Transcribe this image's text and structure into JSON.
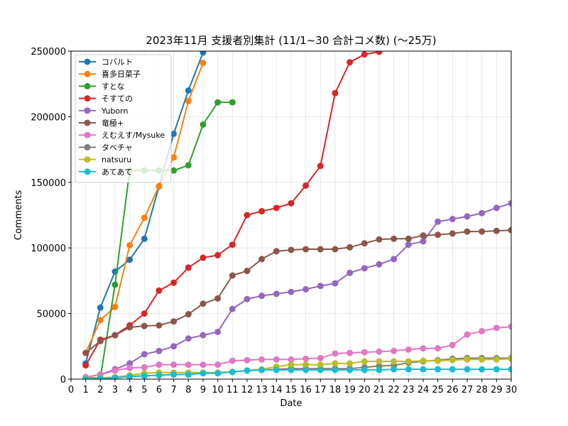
{
  "chart_data": {
    "type": "line",
    "title": "2023年11月 支援者別集計 (11/1~30 合計コメ数) (〜25万)",
    "xlabel": "Date",
    "ylabel": "Comments",
    "xlim": [
      0,
      30
    ],
    "ylim": [
      0,
      250000
    ],
    "x_ticks": [
      "0",
      "1",
      "2",
      "3",
      "4",
      "5",
      "6",
      "7",
      "8",
      "9",
      "10",
      "11",
      "12",
      "13",
      "14",
      "15",
      "16",
      "17",
      "18",
      "19",
      "20",
      "21",
      "22",
      "23",
      "24",
      "25",
      "26",
      "27",
      "28",
      "29",
      "30"
    ],
    "y_ticks": [
      "0",
      "50000",
      "100000",
      "150000",
      "200000",
      "250000"
    ],
    "grid": true,
    "legend_position": "top-left",
    "x": [
      1,
      2,
      3,
      4,
      5,
      6,
      7,
      8,
      9,
      10,
      11,
      12,
      13,
      14,
      15,
      16,
      17,
      18,
      19,
      20,
      21,
      22,
      23,
      24,
      25,
      26,
      27,
      28,
      29,
      30
    ],
    "series": [
      {
        "name": "コバルト",
        "color": "#1f77b4",
        "values": [
          12000,
          54500,
          82000,
          91000,
          107000,
          147000,
          187000,
          220000,
          249000,
          null,
          null,
          null,
          null,
          null,
          null,
          null,
          null,
          null,
          null,
          null,
          null,
          null,
          null,
          null,
          null,
          null,
          null,
          null,
          null,
          null
        ]
      },
      {
        "name": "喜多日菜子",
        "color": "#ff7f0e",
        "values": [
          20000,
          45000,
          55000,
          102000,
          123000,
          147000,
          169000,
          212000,
          241000,
          null,
          null,
          null,
          null,
          null,
          null,
          null,
          null,
          null,
          null,
          null,
          null,
          null,
          null,
          null,
          null,
          null,
          null,
          null,
          null,
          null
        ]
      },
      {
        "name": "すとな",
        "color": "#2ca02c",
        "values": [
          1000,
          1000,
          72000,
          159000,
          159000,
          159000,
          159000,
          163000,
          194000,
          211000,
          211000,
          null,
          null,
          null,
          null,
          null,
          null,
          null,
          null,
          null,
          null,
          null,
          null,
          null,
          null,
          null,
          null,
          null,
          null,
          null
        ]
      },
      {
        "name": "そすての",
        "color": "#d62728",
        "values": [
          10500,
          30000,
          33500,
          41000,
          50000,
          67500,
          73500,
          85000,
          92500,
          94500,
          102500,
          125000,
          128000,
          130500,
          134000,
          147500,
          162500,
          218000,
          241500,
          247500,
          249500,
          null,
          null,
          null,
          null,
          null,
          null,
          null,
          null,
          null
        ]
      },
      {
        "name": "Yuborn",
        "color": "#9467bd",
        "values": [
          1500,
          3500,
          7500,
          12000,
          19000,
          21500,
          25000,
          31000,
          33500,
          36000,
          53500,
          61000,
          63500,
          65000,
          66500,
          68500,
          71000,
          73000,
          81000,
          84500,
          87500,
          91500,
          102500,
          105000,
          120000,
          122000,
          124000,
          126500,
          130500,
          134000
        ]
      },
      {
        "name": "竜極+",
        "color": "#8c564b",
        "values": [
          20000,
          29000,
          33500,
          39500,
          40500,
          41000,
          44000,
          49500,
          57500,
          61500,
          79000,
          82500,
          91500,
          97500,
          98500,
          99000,
          99000,
          99000,
          100500,
          103500,
          106500,
          107000,
          107000,
          109500,
          110000,
          111000,
          112500,
          112500,
          113000,
          113500
        ]
      },
      {
        "name": "えむえす/Mysuke",
        "color": "#e377c2",
        "values": [
          1500,
          3500,
          6500,
          8500,
          9000,
          11000,
          11000,
          11000,
          11000,
          11000,
          14000,
          14500,
          15000,
          15000,
          15000,
          15500,
          16000,
          19500,
          20000,
          20500,
          21000,
          21500,
          22500,
          23500,
          23500,
          26000,
          34000,
          36500,
          39000,
          40000
        ]
      },
      {
        "name": "タベチャ",
        "color": "#7f7f7f",
        "values": [
          0,
          500,
          1000,
          2000,
          2500,
          3000,
          3500,
          3500,
          4500,
          4500,
          5500,
          6500,
          7000,
          7500,
          8000,
          8000,
          8000,
          8000,
          8000,
          9000,
          10000,
          10500,
          12500,
          13500,
          14500,
          15500,
          16000,
          16000,
          16000,
          16000
        ]
      },
      {
        "name": "natsuru",
        "color": "#bcbd22",
        "values": [
          500,
          1000,
          1500,
          3000,
          4500,
          5000,
          5000,
          5000,
          5000,
          5000,
          5500,
          6500,
          7500,
          9500,
          11000,
          11000,
          11000,
          12000,
          12000,
          13500,
          13500,
          13500,
          13500,
          14000,
          14000,
          14500,
          15000,
          15000,
          15000,
          15500
        ]
      },
      {
        "name": "あてあて",
        "color": "#17becf",
        "values": [
          0,
          500,
          1000,
          2000,
          2500,
          3000,
          3500,
          3500,
          4500,
          4500,
          5500,
          6500,
          7000,
          7000,
          7000,
          7000,
          7000,
          7000,
          7000,
          7000,
          7000,
          7500,
          7500,
          7500,
          7500,
          7500,
          7500,
          7500,
          7500,
          7500
        ]
      }
    ]
  }
}
